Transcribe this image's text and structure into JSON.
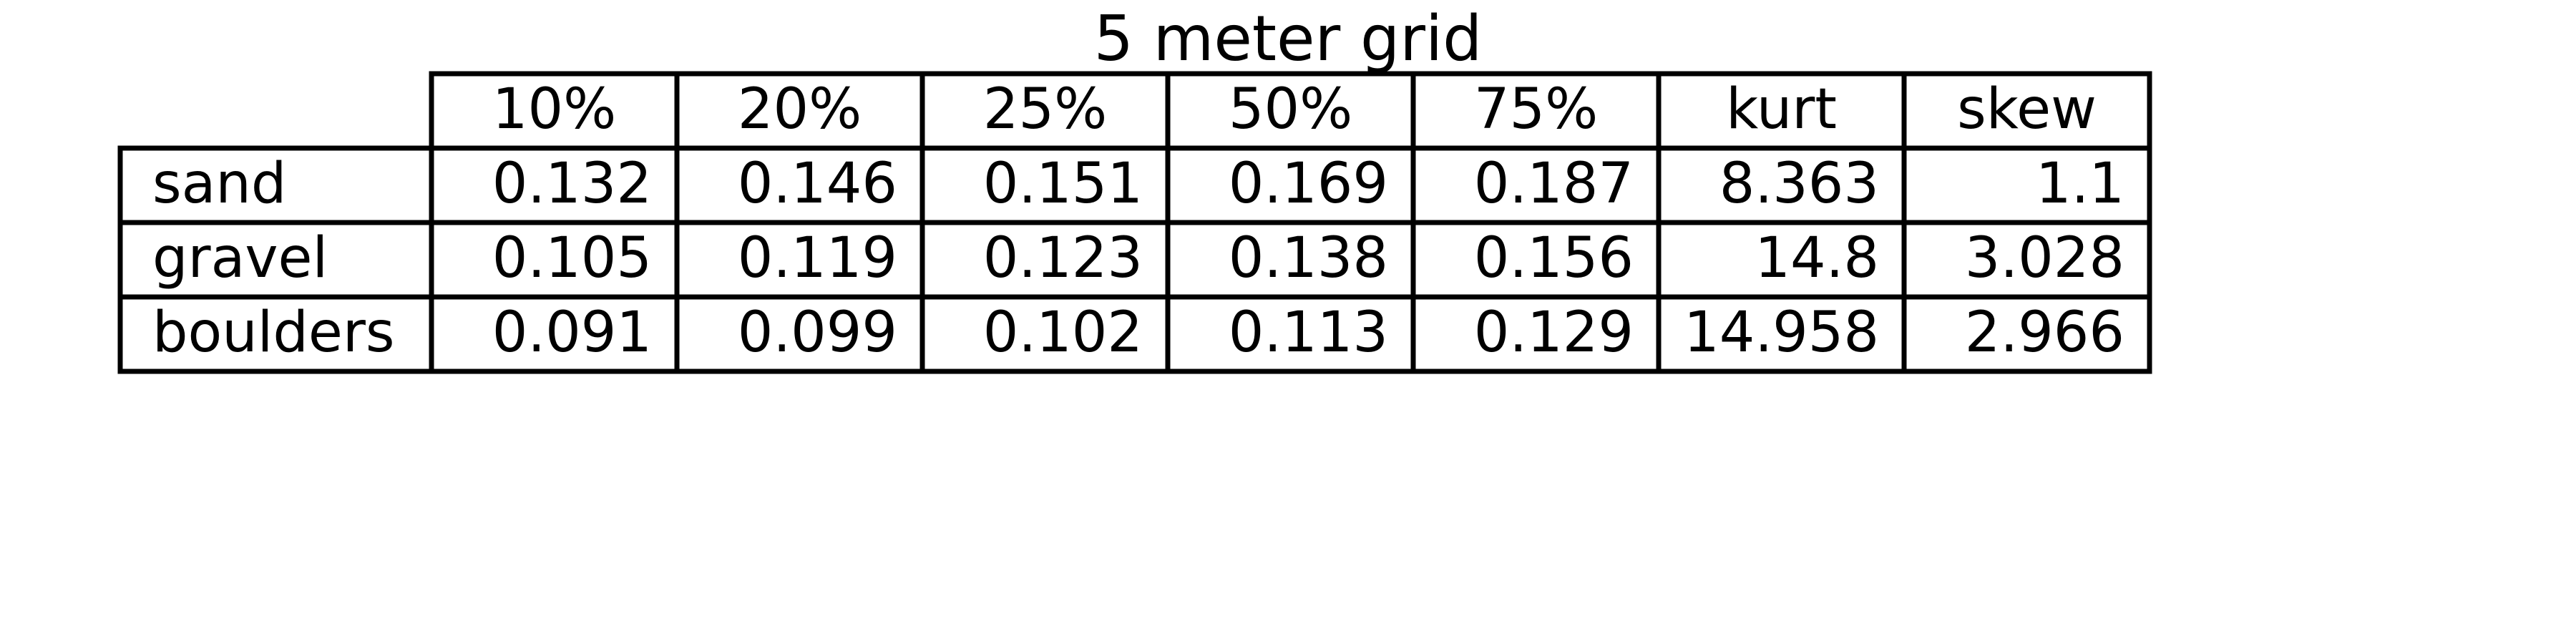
{
  "chart_data": {
    "type": "table",
    "title": "5 meter grid",
    "columns": [
      "10%",
      "20%",
      "25%",
      "50%",
      "75%",
      "kurt",
      "skew"
    ],
    "rows": [
      {
        "label": "sand",
        "values": [
          "0.132",
          "0.146",
          "0.151",
          "0.169",
          "0.187",
          "8.363",
          "1.1"
        ]
      },
      {
        "label": "gravel",
        "values": [
          "0.105",
          "0.119",
          "0.123",
          "0.138",
          "0.156",
          "14.8",
          "3.028"
        ]
      },
      {
        "label": "boulders",
        "values": [
          "0.091",
          "0.099",
          "0.102",
          "0.113",
          "0.129",
          "14.958",
          "2.966"
        ]
      }
    ]
  }
}
